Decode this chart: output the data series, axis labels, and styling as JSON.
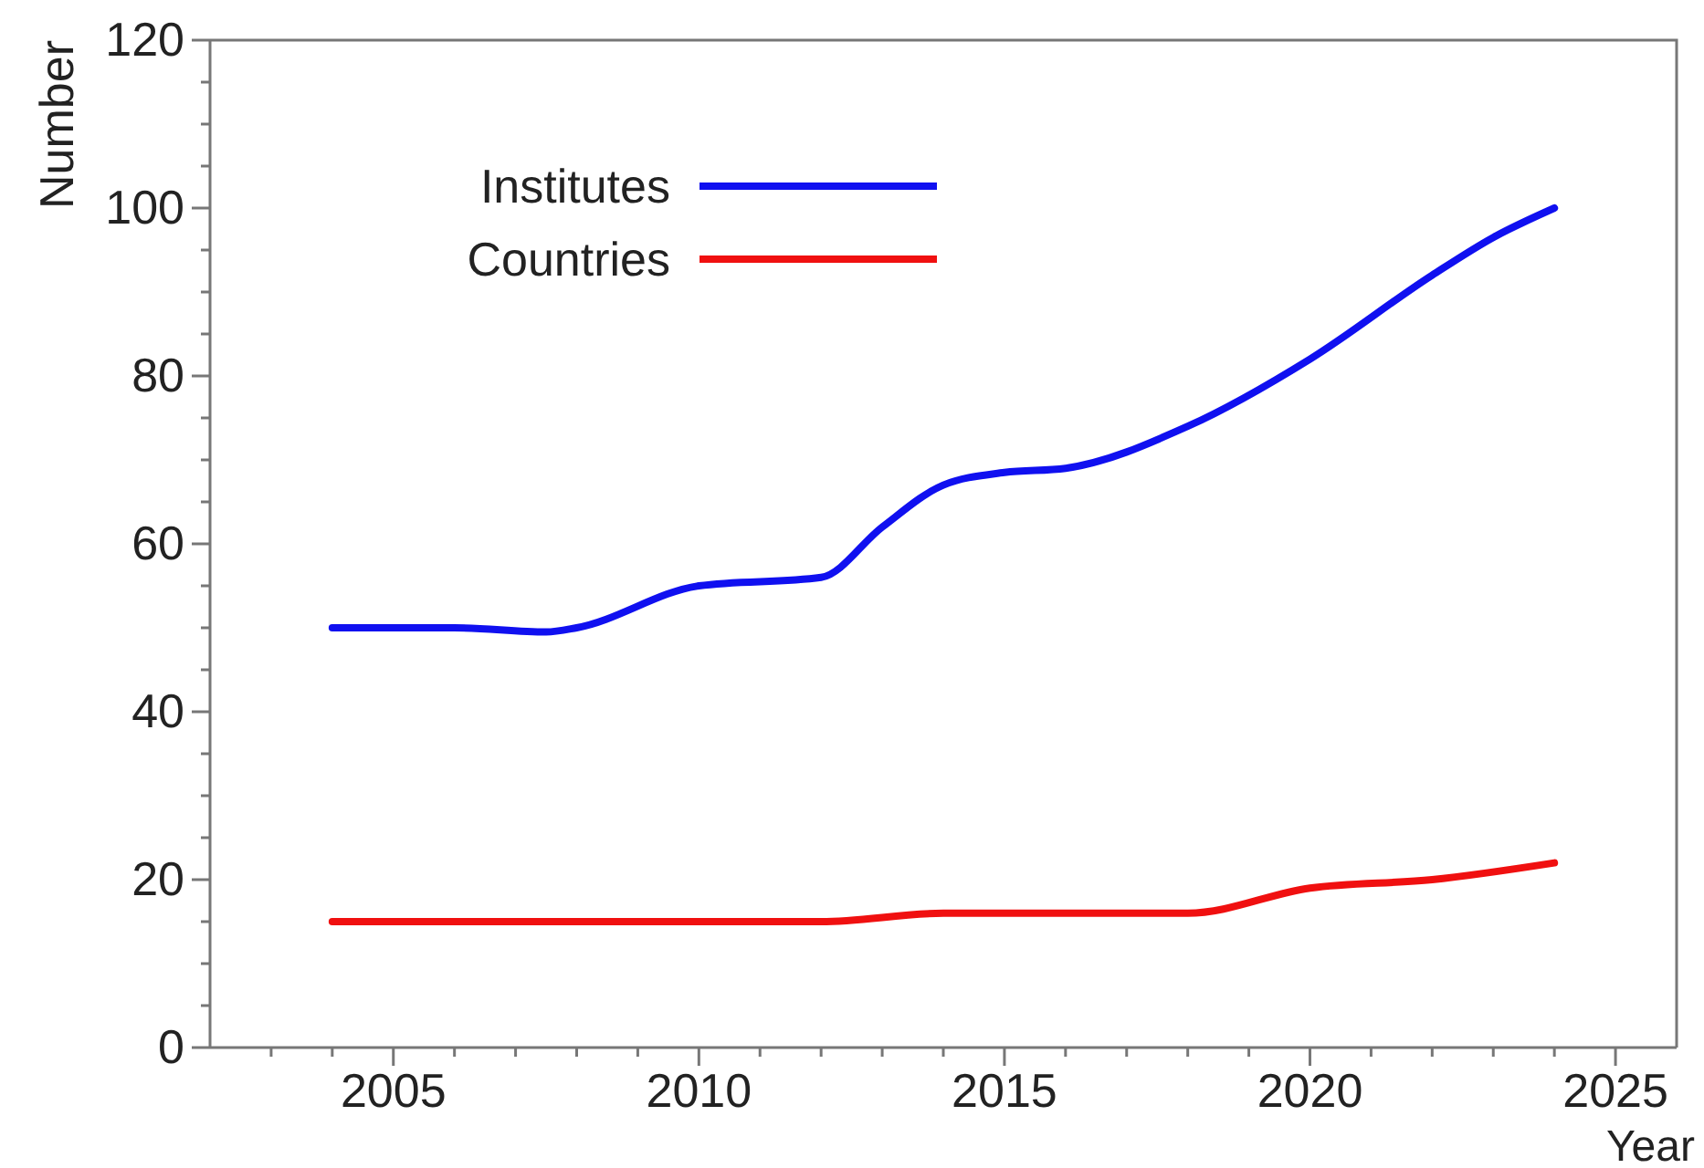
{
  "chart_data": {
    "type": "line",
    "xlabel": "Year",
    "ylabel": "Number",
    "xlim": [
      2002,
      2026
    ],
    "xticks": [
      {
        "value": 2003,
        "label": null
      },
      {
        "value": 2004,
        "label": null
      },
      2005,
      {
        "value": 2006,
        "label": null
      },
      {
        "value": 2007,
        "label": null
      },
      {
        "value": 2008,
        "label": null
      },
      {
        "value": 2009,
        "label": null
      },
      2010,
      {
        "value": 2011,
        "label": null
      },
      {
        "value": 2012,
        "label": null
      },
      {
        "value": 2013,
        "label": null
      },
      {
        "value": 2014,
        "label": null
      },
      2015,
      {
        "value": 2016,
        "label": null
      },
      {
        "value": 2017,
        "label": null
      },
      {
        "value": 2018,
        "label": null
      },
      {
        "value": 2019,
        "label": null
      },
      2020,
      {
        "value": 2021,
        "label": null
      },
      {
        "value": 2022,
        "label": null
      },
      {
        "value": 2023,
        "label": null
      },
      {
        "value": 2024,
        "label": null
      },
      2025
    ],
    "ylim": [
      0,
      120
    ],
    "yticks": [
      0,
      {
        "value": 5,
        "label": null
      },
      {
        "value": 10,
        "label": null
      },
      {
        "value": 15,
        "label": null
      },
      20,
      {
        "value": 25,
        "label": null
      },
      {
        "value": 30,
        "label": null
      },
      {
        "value": 35,
        "label": null
      },
      40,
      {
        "value": 45,
        "label": null
      },
      {
        "value": 50,
        "label": null
      },
      {
        "value": 55,
        "label": null
      },
      60,
      {
        "value": 65,
        "label": null
      },
      {
        "value": 70,
        "label": null
      },
      {
        "value": 75,
        "label": null
      },
      80,
      {
        "value": 85,
        "label": null
      },
      {
        "value": 90,
        "label": null
      },
      {
        "value": 95,
        "label": null
      },
      100,
      {
        "value": 105,
        "label": null
      },
      {
        "value": 110,
        "label": null
      },
      {
        "value": 115,
        "label": null
      },
      120
    ],
    "grid": false,
    "legend": "top left",
    "marker": "none",
    "line_style": "solid",
    "series": [
      {
        "name": "Institutes",
        "color": "#1010f0",
        "x": [
          2004,
          2006,
          2007.5,
          2008,
          2010,
          2012,
          2013,
          2014,
          2015,
          2016,
          2018,
          2020,
          2022,
          2023,
          2024
        ],
        "values": [
          50,
          50,
          49.5,
          50,
          55,
          56,
          62,
          67,
          68.5,
          69,
          74,
          82,
          92,
          96.5,
          100
        ]
      },
      {
        "name": "Countries",
        "color": "#f01010",
        "x": [
          2004,
          2012,
          2014,
          2018,
          2020,
          2022,
          2024
        ],
        "values": [
          15,
          15,
          16,
          16,
          19,
          20,
          22
        ]
      }
    ]
  }
}
